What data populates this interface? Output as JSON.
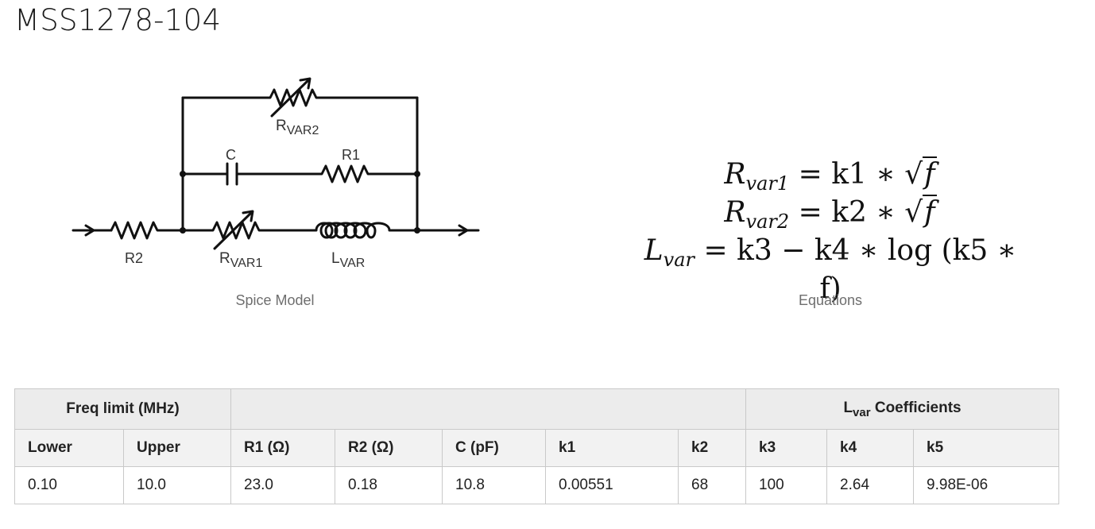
{
  "title": "MSS1278-104",
  "schematic": {
    "labels": {
      "rvar2": "R",
      "rvar2_sub": "VAR2",
      "c": "C",
      "r1": "R1",
      "r2": "R2",
      "rvar1": "R",
      "rvar1_sub": "VAR1",
      "lvar": "L",
      "lvar_sub": "VAR"
    },
    "caption": "Spice Model"
  },
  "equations": {
    "caption": "Equations",
    "eq1": {
      "lhs": "R",
      "lhs_sub": "var1",
      "rhs_pre": "= k1 ∗ ",
      "radicand": "f"
    },
    "eq2": {
      "lhs": "R",
      "lhs_sub": "var2",
      "rhs_pre": "= k2 ∗ ",
      "radicand": "f"
    },
    "eq3": {
      "lhs": "L",
      "lhs_sub": "var",
      "rhs": "= k3 − k4 ∗ log (k5 ∗ f)"
    }
  },
  "table": {
    "group_freq": "Freq limit (MHz)",
    "group_lvar_main": "L",
    "group_lvar_sub": "var",
    "group_lvar_suffix": " Coefficients",
    "headers": [
      "Lower",
      "Upper",
      "R1 (Ω)",
      "R2 (Ω)",
      "C (pF)",
      "k1",
      "k2",
      "k3",
      "k4",
      "k5"
    ],
    "row": [
      "0.10",
      "10.0",
      "23.0",
      "0.18",
      "10.8",
      "0.00551",
      "68",
      "100",
      "2.64",
      "9.98E-06"
    ]
  }
}
